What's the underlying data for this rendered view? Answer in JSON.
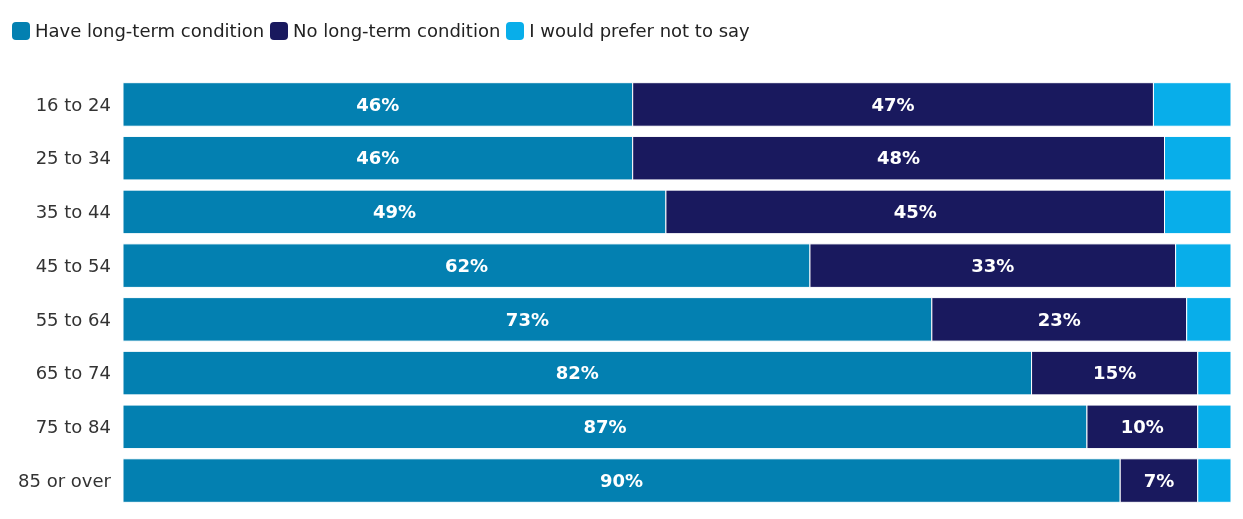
{
  "chart_data": {
    "type": "bar",
    "orientation": "horizontal",
    "stacked": true,
    "legend": "top left",
    "categories": [
      "16 to 24",
      "25 to 34",
      "35 to 44",
      "45 to 54",
      "55 to 64",
      "65 to 74",
      "75 to 84",
      "85 or over"
    ],
    "series": [
      {
        "name": "Have long-term condition",
        "color": "#0380b1",
        "values": [
          46,
          46,
          49,
          62,
          73,
          82,
          87,
          90
        ],
        "value_labels": [
          "46%",
          "46%",
          "49%",
          "62%",
          "73%",
          "82%",
          "87%",
          "90%"
        ]
      },
      {
        "name": "No long-term condition",
        "color": "#19195e",
        "values": [
          47,
          48,
          45,
          33,
          23,
          15,
          10,
          7
        ],
        "value_labels": [
          "47%",
          "48%",
          "45%",
          "33%",
          "23%",
          "15%",
          "10%",
          "7%"
        ]
      },
      {
        "name": "I would prefer not to say",
        "color": "#08aeea",
        "values": [
          7,
          6,
          6,
          5,
          4,
          3,
          3,
          3
        ],
        "value_labels": [
          null,
          null,
          null,
          null,
          null,
          null,
          null,
          null
        ]
      }
    ]
  }
}
